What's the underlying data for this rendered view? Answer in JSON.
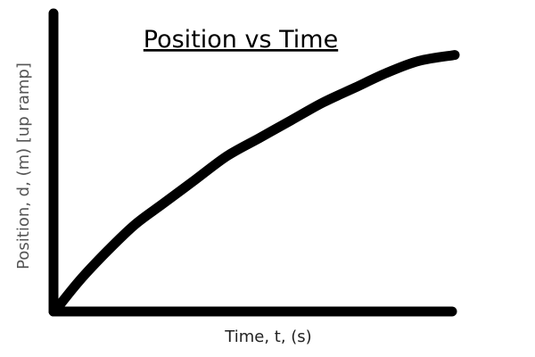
{
  "chart_data": {
    "type": "line",
    "title": "Position vs Time",
    "xlabel": "Time, t, (s)",
    "ylabel": "Position, d, (m) [up ramp]",
    "grid": false,
    "legend": "none",
    "x_ticks_shown": false,
    "y_ticks_shown": false,
    "xlim": [
      0,
      1
    ],
    "ylim": [
      0,
      1
    ],
    "series": [
      {
        "color": "#000000",
        "x": [
          0,
          0.06,
          0.13,
          0.2,
          0.27,
          0.35,
          0.43,
          0.51,
          0.59,
          0.67,
          0.75,
          0.83,
          0.91,
          1.0
        ],
        "y": [
          0,
          0.1,
          0.2,
          0.29,
          0.36,
          0.44,
          0.52,
          0.58,
          0.64,
          0.7,
          0.75,
          0.8,
          0.84,
          0.86
        ]
      }
    ]
  },
  "colors": {
    "line": "#000000",
    "axis": "#000000",
    "title": "#000000",
    "label": "#555555"
  }
}
